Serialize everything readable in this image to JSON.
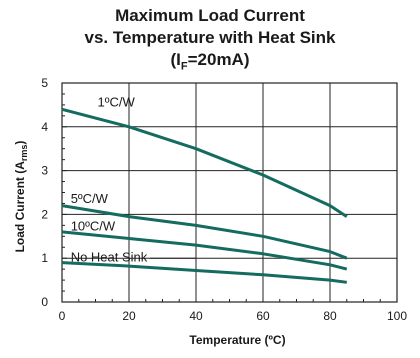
{
  "chart_data": {
    "type": "line",
    "title_lines": [
      "Maximum Load Current",
      "vs. Temperature with Heat Sink"
    ],
    "title_condition": {
      "symbol": "I",
      "subscript": "F",
      "rest": "=20mA"
    },
    "xlabel": "Temperature (ºC)",
    "ylabel": {
      "text": "Load Current (A",
      "subscript": "rms",
      "close": ")"
    },
    "xlim": [
      0,
      100
    ],
    "ylim": [
      0,
      5
    ],
    "xticks": [
      0,
      20,
      40,
      60,
      80,
      100
    ],
    "yticks": [
      0,
      1,
      2,
      3,
      4,
      5
    ],
    "grid": true,
    "line_color": "#146b5f",
    "series": [
      {
        "name": "1ºC/W",
        "x": [
          0,
          20,
          40,
          60,
          80,
          85
        ],
        "y": [
          4.4,
          4.0,
          3.5,
          2.9,
          2.2,
          1.95
        ]
      },
      {
        "name": "5ºC/W",
        "x": [
          0,
          20,
          40,
          60,
          80,
          85
        ],
        "y": [
          2.2,
          1.95,
          1.75,
          1.5,
          1.15,
          1.0
        ]
      },
      {
        "name": "10ºC/W",
        "x": [
          0,
          20,
          40,
          60,
          80,
          85
        ],
        "y": [
          1.6,
          1.45,
          1.3,
          1.1,
          0.85,
          0.75
        ]
      },
      {
        "name": "No Heat Sink",
        "x": [
          0,
          20,
          40,
          60,
          80,
          85
        ],
        "y": [
          0.9,
          0.82,
          0.72,
          0.62,
          0.5,
          0.45
        ]
      }
    ]
  }
}
